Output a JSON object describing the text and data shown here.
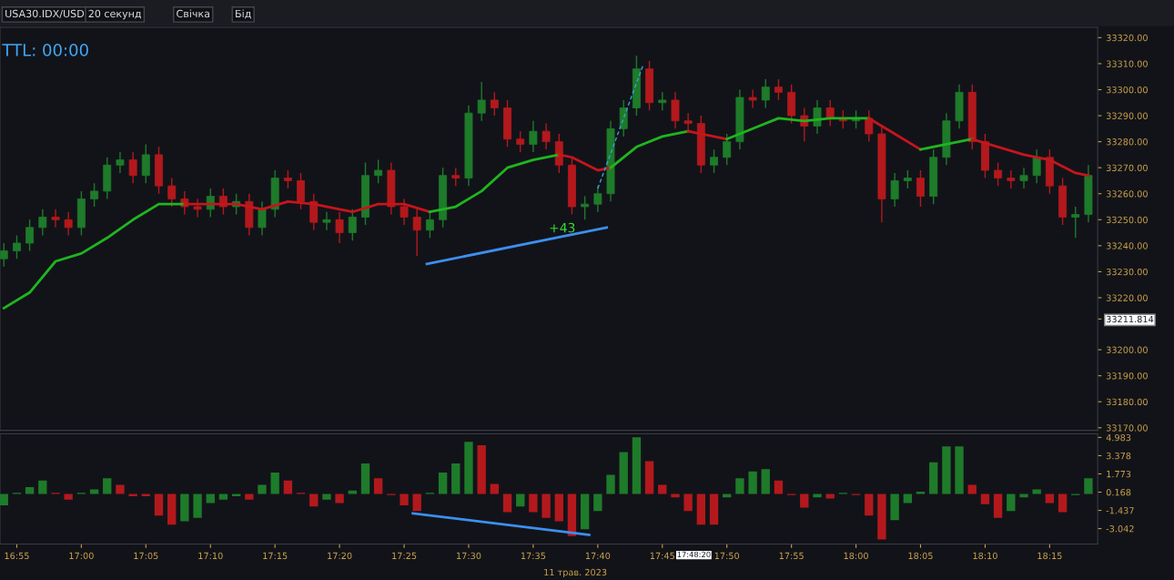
{
  "chart_data": [
    {
      "type": "candlestick",
      "xlim": [
        16.895,
        18.312
      ],
      "ylim": [
        33169,
        33324
      ],
      "tick_labels": "y",
      "yticks": [
        {
          "value": 33170,
          "label": "33170.00"
        },
        {
          "value": 33180,
          "label": "33180.00"
        },
        {
          "value": 33190,
          "label": "33190.00"
        },
        {
          "value": 33200,
          "label": "33200.00"
        },
        {
          "value": 33211.814,
          "label": "33211.814"
        },
        {
          "value": 33220,
          "label": "33220.00"
        },
        {
          "value": 33230,
          "label": "33230.00"
        },
        {
          "value": 33240,
          "label": "33240.00"
        },
        {
          "value": 33250,
          "label": "33250.00"
        },
        {
          "value": 33260,
          "label": "33260.00"
        },
        {
          "value": 33270,
          "label": "33270.00"
        },
        {
          "value": 33280,
          "label": "33280.00"
        },
        {
          "value": 33290,
          "label": "33290.00"
        },
        {
          "value": 33300,
          "label": "33300.00"
        },
        {
          "value": 33310,
          "label": "33310.00"
        },
        {
          "value": 33320,
          "label": "33320.00"
        }
      ],
      "x": [
        16.9,
        16.9167,
        16.9333,
        16.95,
        16.9667,
        16.9833,
        17,
        17.0167,
        17.0333,
        17.05,
        17.0667,
        17.0833,
        17.1,
        17.1167,
        17.1333,
        17.15,
        17.1667,
        17.1833,
        17.2,
        17.2167,
        17.2333,
        17.25,
        17.2667,
        17.2833,
        17.3,
        17.3167,
        17.3333,
        17.35,
        17.3667,
        17.3833,
        17.4,
        17.4167,
        17.4333,
        17.45,
        17.4667,
        17.4833,
        17.5,
        17.5167,
        17.5333,
        17.55,
        17.5667,
        17.5833,
        17.6,
        17.6167,
        17.6333,
        17.65,
        17.6667,
        17.6833,
        17.7,
        17.7167,
        17.7333,
        17.75,
        17.7667,
        17.7833,
        17.8,
        17.8167,
        17.8333,
        17.85,
        17.8667,
        17.8833,
        17.9,
        17.9167,
        17.9333,
        17.95,
        17.9667,
        17.9833,
        18,
        18.0167,
        18.0333,
        18.05,
        18.0667,
        18.0833,
        18.1,
        18.1167,
        18.1333,
        18.15,
        18.1667,
        18.1833,
        18.2,
        18.2167,
        18.2333,
        18.25,
        18.2667,
        18.2833,
        18.3
      ],
      "ohlc": [
        [
          33235,
          33241,
          33232,
          33238
        ],
        [
          33238,
          33244,
          33235,
          33241
        ],
        [
          33241,
          33250,
          33238,
          33247
        ],
        [
          33247,
          33254,
          33244,
          33251
        ],
        [
          33251,
          33254,
          33247,
          33250
        ],
        [
          33250,
          33253,
          33244,
          33247
        ],
        [
          33247,
          33261,
          33244,
          33258
        ],
        [
          33258,
          33264,
          33255,
          33261
        ],
        [
          33261,
          33274,
          33258,
          33271
        ],
        [
          33271,
          33276,
          33268,
          33273
        ],
        [
          33273,
          33276,
          33264,
          33267
        ],
        [
          33267,
          33279,
          33264,
          33275
        ],
        [
          33275,
          33278,
          33260,
          33263
        ],
        [
          33263,
          33266,
          33255,
          33258
        ],
        [
          33258,
          33261,
          33252,
          33255
        ],
        [
          33255,
          33258,
          33251,
          33254
        ],
        [
          33254,
          33262,
          33251,
          33259
        ],
        [
          33259,
          33262,
          33252,
          33255
        ],
        [
          33255,
          33260,
          33252,
          33257
        ],
        [
          33257,
          33260,
          33244,
          33247
        ],
        [
          33247,
          33257,
          33244,
          33254
        ],
        [
          33254,
          33269,
          33251,
          33266
        ],
        [
          33266,
          33269,
          33262,
          33265
        ],
        [
          33265,
          33268,
          33254,
          33257
        ],
        [
          33257,
          33260,
          33246,
          33249
        ],
        [
          33249,
          33253,
          33246,
          33250
        ],
        [
          33250,
          33253,
          33241,
          33245
        ],
        [
          33245,
          33254,
          33242,
          33251
        ],
        [
          33251,
          33272,
          33248,
          33267
        ],
        [
          33267,
          33273,
          33264,
          33269
        ],
        [
          33269,
          33272,
          33252,
          33255
        ],
        [
          33255,
          33258,
          33248,
          33251
        ],
        [
          33251,
          33254,
          33236,
          33246
        ],
        [
          33246,
          33253,
          33243,
          33250
        ],
        [
          33250,
          33270,
          33247,
          33267
        ],
        [
          33267,
          33270,
          33263,
          33266
        ],
        [
          33266,
          33294,
          33263,
          33291
        ],
        [
          33291,
          33303,
          33288,
          33296
        ],
        [
          33296,
          33299,
          33290,
          33293
        ],
        [
          33293,
          33296,
          33278,
          33281
        ],
        [
          33281,
          33284,
          33276,
          33279
        ],
        [
          33279,
          33288,
          33276,
          33284
        ],
        [
          33284,
          33287,
          33277,
          33280
        ],
        [
          33280,
          33283,
          33268,
          33271
        ],
        [
          33271,
          33274,
          33252,
          33255
        ],
        [
          33255,
          33259,
          33250,
          33256
        ],
        [
          33256,
          33263,
          33253,
          33260
        ],
        [
          33260,
          33288,
          33257,
          33285
        ],
        [
          33285,
          33296,
          33282,
          33293
        ],
        [
          33293,
          33313,
          33290,
          33308
        ],
        [
          33308,
          33311,
          33292,
          33295
        ],
        [
          33295,
          33299,
          33292,
          33296
        ],
        [
          33296,
          33299,
          33285,
          33288
        ],
        [
          33288,
          33291,
          33284,
          33287
        ],
        [
          33287,
          33290,
          33268,
          33271
        ],
        [
          33271,
          33277,
          33268,
          33274
        ],
        [
          33274,
          33283,
          33271,
          33280
        ],
        [
          33280,
          33300,
          33277,
          33297
        ],
        [
          33297,
          33300,
          33293,
          33296
        ],
        [
          33296,
          33304,
          33293,
          33301
        ],
        [
          33301,
          33304,
          33296,
          33299
        ],
        [
          33299,
          33302,
          33287,
          33290
        ],
        [
          33290,
          33293,
          33280,
          33286
        ],
        [
          33286,
          33296,
          33283,
          33293
        ],
        [
          33293,
          33296,
          33286,
          33289
        ],
        [
          33289,
          33292,
          33285,
          33288
        ],
        [
          33288,
          33292,
          33285,
          33289
        ],
        [
          33289,
          33292,
          33280,
          33283
        ],
        [
          33283,
          33286,
          33249,
          33258
        ],
        [
          33258,
          33268,
          33255,
          33265
        ],
        [
          33265,
          33269,
          33262,
          33266
        ],
        [
          33266,
          33269,
          33255,
          33259
        ],
        [
          33259,
          33277,
          33256,
          33274
        ],
        [
          33274,
          33291,
          33271,
          33288
        ],
        [
          33288,
          33302,
          33285,
          33299
        ],
        [
          33299,
          33302,
          33277,
          33280
        ],
        [
          33280,
          33283,
          33266,
          33269
        ],
        [
          33269,
          33272,
          33263,
          33266
        ],
        [
          33266,
          33269,
          33262,
          33265
        ],
        [
          33265,
          33270,
          33262,
          33267
        ],
        [
          33267,
          33277,
          33264,
          33274
        ],
        [
          33274,
          33277,
          33260,
          33263
        ],
        [
          33263,
          33266,
          33248,
          33251
        ],
        [
          33251,
          33255,
          33243,
          33252
        ],
        [
          33252,
          33271,
          33249,
          33267
        ]
      ],
      "colors": [
        "#1e7b2a",
        "#1e7b2a",
        "#1e7b2a",
        "#1e7b2a",
        "#b3191c",
        "#b3191c",
        "#1e7b2a",
        "#1e7b2a",
        "#1e7b2a",
        "#1e7b2a",
        "#b3191c",
        "#1e7b2a",
        "#b3191c",
        "#b3191c",
        "#b3191c",
        "#b3191c",
        "#1e7b2a",
        "#b3191c",
        "#1e7b2a",
        "#b3191c",
        "#1e7b2a",
        "#1e7b2a",
        "#b3191c",
        "#b3191c",
        "#b3191c",
        "#1e7b2a",
        "#b3191c",
        "#1e7b2a",
        "#1e7b2a",
        "#1e7b2a",
        "#b3191c",
        "#b3191c",
        "#b3191c",
        "#1e7b2a",
        "#1e7b2a",
        "#b3191c",
        "#1e7b2a",
        "#1e7b2a",
        "#b3191c",
        "#b3191c",
        "#b3191c",
        "#1e7b2a",
        "#b3191c",
        "#b3191c",
        "#b3191c",
        "#1e7b2a",
        "#1e7b2a",
        "#1e7b2a",
        "#1e7b2a",
        "#1e7b2a",
        "#b3191c",
        "#1e7b2a",
        "#b3191c",
        "#b3191c",
        "#b3191c",
        "#1e7b2a",
        "#1e7b2a",
        "#1e7b2a",
        "#b3191c",
        "#1e7b2a",
        "#b3191c",
        "#b3191c",
        "#b3191c",
        "#1e7b2a",
        "#b3191c",
        "#b3191c",
        "#1e7b2a",
        "#b3191c",
        "#b3191c",
        "#1e7b2a",
        "#1e7b2a",
        "#b3191c",
        "#1e7b2a",
        "#1e7b2a",
        "#1e7b2a",
        "#b3191c",
        "#b3191c",
        "#b3191c",
        "#b3191c",
        "#1e7b2a",
        "#1e7b2a",
        "#b3191c",
        "#b3191c",
        "#1e7b2a",
        "#1e7b2a"
      ],
      "series": [
        {
          "type": "line",
          "color": "#1fb51f",
          "x": [
            16.9,
            16.9333,
            16.9667,
            17,
            17.0333,
            17.0667,
            17.1,
            17.1333
          ],
          "values": [
            33216,
            33222,
            33234,
            33237,
            33243,
            33250,
            33256,
            33256
          ]
        },
        {
          "type": "line",
          "color": "#c4161c",
          "x": [
            17.1333,
            17.1667,
            17.2,
            17.2333,
            17.2667,
            17.3,
            17.3333,
            17.35,
            17.3833,
            17.4167,
            17.45
          ],
          "values": [
            33256,
            33256,
            33256,
            33254,
            33257,
            33256,
            33254,
            33253,
            33256,
            33256,
            33253
          ]
        },
        {
          "type": "line",
          "color": "#1fb51f",
          "x": [
            17.45,
            17.4833,
            17.5167,
            17.55,
            17.5833,
            17.6167
          ],
          "values": [
            33253,
            33255,
            33261,
            33270,
            33273,
            33275
          ]
        },
        {
          "type": "line",
          "color": "#c4161c",
          "x": [
            17.6167,
            17.6333,
            17.6667,
            17.6833
          ],
          "values": [
            33275,
            33274,
            33269,
            33270
          ]
        },
        {
          "type": "line",
          "color": "#1fb51f",
          "x": [
            17.6833,
            17.7167,
            17.75,
            17.7833
          ],
          "values": [
            33270,
            33278,
            33282,
            33284
          ]
        },
        {
          "type": "line",
          "color": "#c4161c",
          "x": [
            17.7833,
            17.8167,
            17.8333
          ],
          "values": [
            33284,
            33282,
            33281
          ]
        },
        {
          "type": "line",
          "color": "#1fb51f",
          "x": [
            17.8333,
            17.8667,
            17.9,
            17.9333,
            17.9667,
            18,
            18.0167
          ],
          "values": [
            33281,
            33285,
            33289,
            33288,
            33289,
            33289,
            33289
          ]
        },
        {
          "type": "line",
          "color": "#c4161c",
          "x": [
            18.0167,
            18.05,
            18.0833
          ],
          "values": [
            33289,
            33283,
            33277
          ]
        },
        {
          "type": "line",
          "color": "#1fb51f",
          "x": [
            18.0833,
            18.1167,
            18.15
          ],
          "values": [
            33277,
            33279,
            33281
          ]
        },
        {
          "type": "line",
          "color": "#c4161c",
          "x": [
            18.15,
            18.1833,
            18.2167,
            18.25,
            18.2833,
            18.3
          ],
          "values": [
            33281,
            33278,
            33275,
            33273,
            33268,
            33267
          ]
        },
        {
          "type": "line",
          "color": "#3d8ff0",
          "x": [
            17.4461,
            17.6782
          ],
          "values": [
            33233,
            33247
          ]
        },
        {
          "type": "line",
          "color": "#3aa0d8",
          "line_style": "dashed",
          "x": [
            17.6667,
            17.7246
          ],
          "values": [
            33262,
            33309
          ]
        }
      ],
      "annotations": [
        "USA30.IDX/USD",
        "20 секунд",
        "Свічка",
        "Бід",
        "TTL: 00:00",
        "+43"
      ]
    },
    {
      "type": "bar",
      "xlim": [
        16.895,
        18.312
      ],
      "ylim": [
        -4.4,
        5.3
      ],
      "yticks": [
        4.983,
        3.378,
        1.773,
        0.168,
        -1.437,
        -3.042
      ],
      "xticks": [
        {
          "value": 16.9167,
          "label": "16:55"
        },
        {
          "value": 17,
          "label": "17:00"
        },
        {
          "value": 17.0833,
          "label": "17:05"
        },
        {
          "value": 17.1667,
          "label": "17:10"
        },
        {
          "value": 17.25,
          "label": "17:15"
        },
        {
          "value": 17.3333,
          "label": "17:20"
        },
        {
          "value": 17.4167,
          "label": "17:25"
        },
        {
          "value": 17.5,
          "label": "17:30"
        },
        {
          "value": 17.5833,
          "label": "17:35"
        },
        {
          "value": 17.6667,
          "label": "17:40"
        },
        {
          "value": 17.75,
          "label": "17:45"
        },
        {
          "value": 17.8333,
          "label": "17:50"
        },
        {
          "value": 17.9167,
          "label": "17:55"
        },
        {
          "value": 18,
          "label": "18:00"
        },
        {
          "value": 18.0833,
          "label": "18:05"
        },
        {
          "value": 18.1667,
          "label": "18:10"
        },
        {
          "value": 18.25,
          "label": "18:15"
        }
      ],
      "x": [
        16.9,
        16.9167,
        16.9333,
        16.95,
        16.9667,
        16.9833,
        17,
        17.0167,
        17.0333,
        17.05,
        17.0667,
        17.0833,
        17.1,
        17.1167,
        17.1333,
        17.15,
        17.1667,
        17.1833,
        17.2,
        17.2167,
        17.2333,
        17.25,
        17.2667,
        17.2833,
        17.3,
        17.3167,
        17.3333,
        17.35,
        17.3667,
        17.3833,
        17.4,
        17.4167,
        17.4333,
        17.45,
        17.4667,
        17.4833,
        17.5,
        17.5167,
        17.5333,
        17.55,
        17.5667,
        17.5833,
        17.6,
        17.6167,
        17.6333,
        17.65,
        17.6667,
        17.6833,
        17.7,
        17.7167,
        17.7333,
        17.75,
        17.7667,
        17.7833,
        17.8,
        17.8167,
        17.8333,
        17.85,
        17.8667,
        17.8833,
        17.9,
        17.9167,
        17.9333,
        17.95,
        17.9667,
        17.9833,
        18,
        18.0167,
        18.0333,
        18.05,
        18.0667,
        18.0833,
        18.1,
        18.1167,
        18.1333,
        18.15,
        18.1667,
        18.1833,
        18.2,
        18.2167,
        18.2333,
        18.25,
        18.2667,
        18.2833,
        18.3
      ],
      "values": [
        -1.0,
        0.1,
        0.6,
        1.2,
        0.1,
        -0.5,
        0.1,
        0.4,
        1.4,
        0.8,
        -0.2,
        -0.2,
        -1.9,
        -2.7,
        -2.4,
        -2.1,
        -0.8,
        -0.5,
        -0.2,
        -0.5,
        0.8,
        1.9,
        1.2,
        0.1,
        -1.1,
        -0.5,
        -0.8,
        0.3,
        2.7,
        1.4,
        -0.1,
        -1.0,
        -1.5,
        0.1,
        1.9,
        2.7,
        4.6,
        4.3,
        0.9,
        -1.6,
        -1.1,
        -1.6,
        -2.1,
        -2.4,
        -3.7,
        -3.1,
        -1.5,
        1.7,
        3.7,
        5.0,
        2.9,
        0.8,
        -0.3,
        -1.5,
        -2.7,
        -2.7,
        -0.3,
        1.4,
        2.0,
        2.2,
        1.2,
        -0.1,
        -1.2,
        -0.3,
        -0.4,
        0.1,
        -0.1,
        -1.9,
        -4.0,
        -2.3,
        -0.8,
        0.2,
        2.8,
        4.2,
        4.2,
        0.8,
        -0.9,
        -2.1,
        -1.5,
        -0.3,
        0.4,
        -0.8,
        -1.6,
        -0.1,
        1.4
      ],
      "colors": [
        "#1e7b2a",
        "#1e7b2a",
        "#1e7b2a",
        "#1e7b2a",
        "#b3191c",
        "#b3191c",
        "#1e7b2a",
        "#1e7b2a",
        "#1e7b2a",
        "#b3191c",
        "#b3191c",
        "#b3191c",
        "#b3191c",
        "#b3191c",
        "#1e7b2a",
        "#1e7b2a",
        "#1e7b2a",
        "#1e7b2a",
        "#1e7b2a",
        "#b3191c",
        "#1e7b2a",
        "#1e7b2a",
        "#b3191c",
        "#b3191c",
        "#b3191c",
        "#1e7b2a",
        "#b3191c",
        "#1e7b2a",
        "#1e7b2a",
        "#b3191c",
        "#b3191c",
        "#b3191c",
        "#b3191c",
        "#1e7b2a",
        "#1e7b2a",
        "#1e7b2a",
        "#1e7b2a",
        "#b3191c",
        "#b3191c",
        "#b3191c",
        "#1e7b2a",
        "#b3191c",
        "#b3191c",
        "#b3191c",
        "#b3191c",
        "#1e7b2a",
        "#1e7b2a",
        "#1e7b2a",
        "#1e7b2a",
        "#1e7b2a",
        "#b3191c",
        "#b3191c",
        "#b3191c",
        "#b3191c",
        "#b3191c",
        "#b3191c",
        "#1e7b2a",
        "#1e7b2a",
        "#1e7b2a",
        "#1e7b2a",
        "#b3191c",
        "#b3191c",
        "#b3191c",
        "#1e7b2a",
        "#b3191c",
        "#1e7b2a",
        "#b3191c",
        "#b3191c",
        "#b3191c",
        "#1e7b2a",
        "#1e7b2a",
        "#1e7b2a",
        "#1e7b2a",
        "#1e7b2a",
        "#1e7b2a",
        "#b3191c",
        "#b3191c",
        "#b3191c",
        "#1e7b2a",
        "#1e7b2a",
        "#1e7b2a",
        "#b3191c",
        "#b3191c",
        "#1e7b2a",
        "#1e7b2a"
      ],
      "series": [
        {
          "type": "line",
          "color": "#3d8ff0",
          "x": [
            17.428,
            17.6556
          ],
          "values": [
            -1.7,
            -3.6
          ]
        }
      ],
      "annotations": [
        "17:48:20",
        "11 трав. 2023"
      ]
    }
  ]
}
